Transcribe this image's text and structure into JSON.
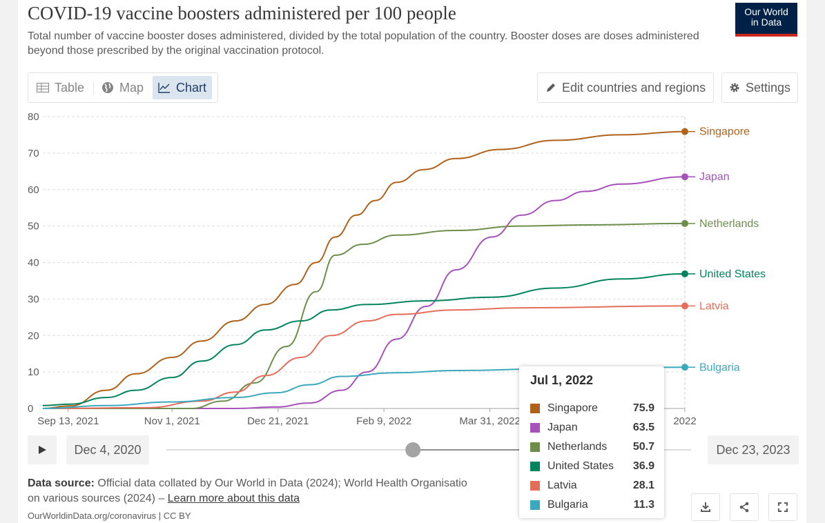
{
  "header": {
    "title": "COVID-19 vaccine boosters administered per 100 people",
    "subtitle": "Total number of vaccine booster doses administered, divided by the total population of the country. Booster doses are doses administered beyond those prescribed by the original vaccination protocol.",
    "logo_line1": "Our World",
    "logo_line2": "in Data"
  },
  "tabs": [
    {
      "label": "Table",
      "icon": "table-icon"
    },
    {
      "label": "Map",
      "icon": "globe-icon"
    },
    {
      "label": "Chart",
      "icon": "line-chart-icon",
      "active": true
    }
  ],
  "toolbar": {
    "edit_label": "Edit countries and regions",
    "settings_label": "Settings"
  },
  "timeline": {
    "start_label": "Dec 4, 2020",
    "end_label": "Dec 23, 2023",
    "handle_start": 0.47,
    "handle_end": 0.74
  },
  "tooltip": {
    "date": "Jul 1, 2022",
    "rows": [
      {
        "name": "Singapore",
        "value": "75.9",
        "color": "#b0621a"
      },
      {
        "name": "Japan",
        "value": "63.5",
        "color": "#a652ba"
      },
      {
        "name": "Netherlands",
        "value": "50.7",
        "color": "#6d8e4b"
      },
      {
        "name": "United States",
        "value": "36.9",
        "color": "#00845f"
      },
      {
        "name": "Latvia",
        "value": "28.1",
        "color": "#e56e5a"
      },
      {
        "name": "Bulgaria",
        "value": "11.3",
        "color": "#3aa9be"
      }
    ]
  },
  "footer": {
    "source_label": "Data source:",
    "source_text_1": "Official data collated by Our World in Data (2024); World Health Organisatio",
    "source_text_2": "on various sources (2024) – ",
    "learn_more": "Learn more about this data",
    "license": "OurWorldinData.org/coronavirus | CC BY"
  },
  "chart_data": {
    "type": "line",
    "ylim": [
      0,
      80
    ],
    "yticks": [
      0,
      10,
      20,
      30,
      40,
      50,
      60,
      70,
      80
    ],
    "xlim": [
      "2021-09-01",
      "2022-07-01"
    ],
    "xticks": [
      {
        "date": "2021-09-13",
        "label": "Sep 13, 2021"
      },
      {
        "date": "2021-11-01",
        "label": "Nov 1, 2021"
      },
      {
        "date": "2021-12-21",
        "label": "Dec 21, 2021"
      },
      {
        "date": "2022-02-09",
        "label": "Feb 9, 2022"
      },
      {
        "date": "2022-03-31",
        "label": "Mar 31, 2022"
      },
      {
        "date": "2022-07-01",
        "label": "2022"
      }
    ],
    "grid": true,
    "series": [
      {
        "name": "Singapore",
        "color": "#b0621a",
        "points": [
          [
            "2021-09-01",
            0
          ],
          [
            "2021-09-14",
            0.7
          ],
          [
            "2021-10-01",
            5
          ],
          [
            "2021-10-15",
            9.5
          ],
          [
            "2021-11-01",
            14
          ],
          [
            "2021-11-15",
            18.5
          ],
          [
            "2021-12-01",
            24
          ],
          [
            "2021-12-15",
            28.5
          ],
          [
            "2021-12-29",
            34
          ],
          [
            "2022-01-08",
            40
          ],
          [
            "2022-01-17",
            47
          ],
          [
            "2022-01-27",
            53
          ],
          [
            "2022-02-05",
            57
          ],
          [
            "2022-02-15",
            62
          ],
          [
            "2022-02-28",
            65.5
          ],
          [
            "2022-03-15",
            68.5
          ],
          [
            "2022-04-05",
            71
          ],
          [
            "2022-05-01",
            73.5
          ],
          [
            "2022-06-01",
            75
          ],
          [
            "2022-07-01",
            75.9
          ]
        ]
      },
      {
        "name": "Japan",
        "color": "#a652ba",
        "points": [
          [
            "2021-09-01",
            0
          ],
          [
            "2021-12-01",
            0
          ],
          [
            "2021-12-20",
            0.4
          ],
          [
            "2022-01-05",
            1.5
          ],
          [
            "2022-01-20",
            5
          ],
          [
            "2022-02-01",
            10
          ],
          [
            "2022-02-15",
            19
          ],
          [
            "2022-03-01",
            28
          ],
          [
            "2022-03-15",
            38
          ],
          [
            "2022-04-01",
            47
          ],
          [
            "2022-04-15",
            53
          ],
          [
            "2022-05-01",
            57
          ],
          [
            "2022-05-15",
            59.5
          ],
          [
            "2022-06-01",
            61.5
          ],
          [
            "2022-07-01",
            63.5
          ]
        ]
      },
      {
        "name": "Netherlands",
        "color": "#6d8e4b",
        "points": [
          [
            "2021-09-01",
            0
          ],
          [
            "2021-11-10",
            0
          ],
          [
            "2021-11-25",
            2
          ],
          [
            "2021-12-10",
            7
          ],
          [
            "2021-12-25",
            17
          ],
          [
            "2022-01-08",
            32
          ],
          [
            "2022-01-17",
            42
          ],
          [
            "2022-01-30",
            45
          ],
          [
            "2022-02-15",
            47.5
          ],
          [
            "2022-03-15",
            48.8
          ],
          [
            "2022-04-15",
            50
          ],
          [
            "2022-05-15",
            50.3
          ],
          [
            "2022-07-01",
            50.7
          ]
        ]
      },
      {
        "name": "United States",
        "color": "#00845f",
        "points": [
          [
            "2021-09-01",
            0.8
          ],
          [
            "2021-09-14",
            1.2
          ],
          [
            "2021-10-01",
            3
          ],
          [
            "2021-10-15",
            5
          ],
          [
            "2021-11-01",
            8.5
          ],
          [
            "2021-11-15",
            13
          ],
          [
            "2021-12-01",
            17.5
          ],
          [
            "2021-12-15",
            21.5
          ],
          [
            "2022-01-01",
            24
          ],
          [
            "2022-01-15",
            27
          ],
          [
            "2022-02-01",
            28.5
          ],
          [
            "2022-03-01",
            29.5
          ],
          [
            "2022-04-01",
            30.5
          ],
          [
            "2022-05-01",
            33
          ],
          [
            "2022-06-01",
            35.5
          ],
          [
            "2022-07-01",
            36.9
          ]
        ]
      },
      {
        "name": "Latvia",
        "color": "#e56e5a",
        "points": [
          [
            "2021-09-01",
            0
          ],
          [
            "2021-10-20",
            0.2
          ],
          [
            "2021-11-15",
            2
          ],
          [
            "2021-12-01",
            4.5
          ],
          [
            "2021-12-15",
            9
          ],
          [
            "2022-01-01",
            14
          ],
          [
            "2022-01-15",
            20
          ],
          [
            "2022-02-01",
            24
          ],
          [
            "2022-02-15",
            25.8
          ],
          [
            "2022-03-15",
            27
          ],
          [
            "2022-04-15",
            27.6
          ],
          [
            "2022-07-01",
            28.1
          ]
        ]
      },
      {
        "name": "Bulgaria",
        "color": "#3aa9be",
        "points": [
          [
            "2021-09-01",
            0
          ],
          [
            "2021-10-01",
            0.8
          ],
          [
            "2021-11-01",
            1.8
          ],
          [
            "2021-12-01",
            3
          ],
          [
            "2021-12-20",
            4.3
          ],
          [
            "2022-01-05",
            6.5
          ],
          [
            "2022-01-20",
            8.8
          ],
          [
            "2022-02-15",
            9.8
          ],
          [
            "2022-03-15",
            10.4
          ],
          [
            "2022-05-01",
            10.9
          ],
          [
            "2022-07-01",
            11.3
          ]
        ]
      }
    ]
  }
}
